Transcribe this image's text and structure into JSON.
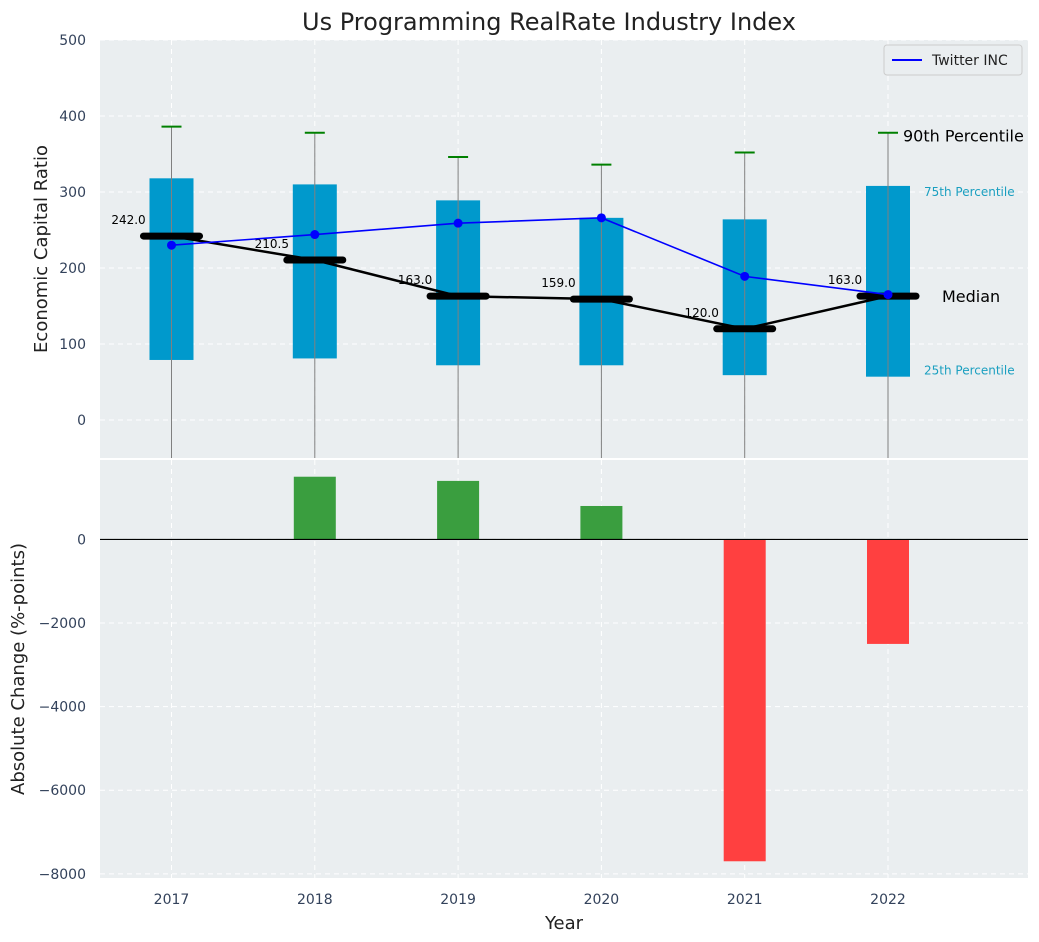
{
  "chart_data": {
    "type": "bar",
    "title": "Us Programming RealRate Industry Index",
    "xlabel": "Year",
    "grid": true,
    "legend_position": "top-right",
    "colors": {
      "box": "#0099cc",
      "median": "#000000",
      "company": "#0000ff",
      "whisker": "#808080",
      "whisker_cap": "#008000",
      "positive": "#3a9e3f",
      "negative": "#ff4040",
      "background": "#eaeef0",
      "percentile_label": "#1a9fc0"
    },
    "categories": [
      "2017",
      "2018",
      "2019",
      "2020",
      "2021",
      "2022"
    ],
    "top_panel": {
      "ylabel": "Economic Capital Ratio",
      "ylim": [
        -50,
        500
      ],
      "yticks": [
        0,
        100,
        200,
        300,
        400,
        500
      ],
      "percentile_25": [
        79,
        81,
        72,
        72,
        59,
        57
      ],
      "percentile_75": [
        318,
        310,
        289,
        266,
        264,
        308
      ],
      "percentile_90": [
        386,
        378,
        346,
        336,
        352,
        378
      ],
      "median": [
        242.0,
        210.5,
        163.0,
        159.0,
        120.0,
        163.0
      ],
      "median_labels": [
        "242.0",
        "210.5",
        "163.0",
        "159.0",
        "120.0",
        "163.0"
      ],
      "company_series": {
        "name": "Twitter INC",
        "values": [
          230,
          244,
          259,
          266,
          189,
          165
        ]
      },
      "annotations": {
        "p90": "90th Percentile",
        "p75": "75th Percentile",
        "median": "Median",
        "p25": "25th Percentile"
      }
    },
    "bottom_panel": {
      "ylabel": "Absolute Change (%-points)",
      "ylim": [
        -8100,
        1900
      ],
      "yticks": [
        0,
        -2000,
        -4000,
        -6000,
        -8000
      ],
      "ytick_labels": [
        "0",
        "−2000",
        "−4000",
        "−6000",
        "−8000"
      ],
      "values": [
        0,
        1500,
        1400,
        800,
        -7700,
        -2500
      ]
    }
  }
}
